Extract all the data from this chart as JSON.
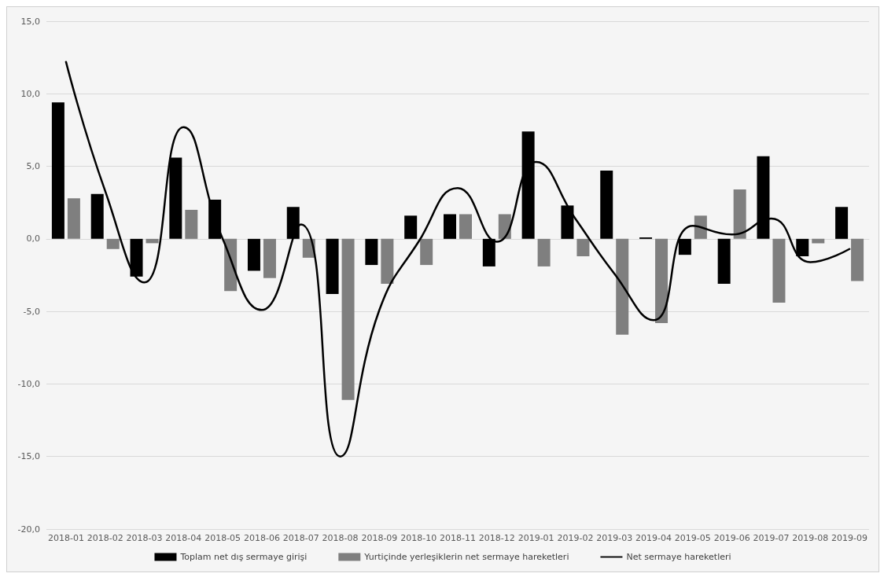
{
  "chart_data": {
    "type": "bar",
    "categories": [
      "2018-01",
      "2018-02",
      "2018-03",
      "2018-04",
      "2018-05",
      "2018-06",
      "2018-07",
      "2018-08",
      "2018-09",
      "2018-10",
      "2018-11",
      "2018-12",
      "2019-01",
      "2019-02",
      "2019-03",
      "2019-04",
      "2019-05",
      "2019-06",
      "2019-07",
      "2019-08",
      "2019-09"
    ],
    "series": [
      {
        "name": "Toplam net dış sermaye girişi",
        "color": "#000000",
        "values": [
          9.4,
          3.1,
          -2.6,
          5.6,
          2.7,
          -2.2,
          2.2,
          -3.8,
          -1.8,
          1.6,
          1.7,
          -1.9,
          7.4,
          2.3,
          4.7,
          0.1,
          -1.1,
          -3.1,
          5.7,
          -1.2,
          2.2
        ]
      },
      {
        "name": "Yurtiçinde yerleşiklerin net sermaye hareketleri",
        "color": "#7f7f7f",
        "values": [
          2.8,
          -0.7,
          -0.3,
          2.0,
          -3.6,
          -2.7,
          -1.3,
          -11.1,
          -3.1,
          -1.8,
          1.7,
          1.7,
          -1.9,
          -1.2,
          -6.6,
          -5.8,
          1.6,
          3.4,
          -4.4,
          -0.3,
          -2.9
        ]
      },
      {
        "name": "Net sermaye hareketleri",
        "type": "line",
        "color": "#000000",
        "values": [
          12.2,
          3.3,
          -3.0,
          7.7,
          0.0,
          -4.9,
          1.0,
          -15.0,
          -4.9,
          -0.2,
          3.5,
          -0.2,
          5.3,
          1.4,
          -2.4,
          -5.6,
          0.9,
          0.3,
          1.4,
          -1.6,
          -0.7
        ]
      }
    ],
    "ylim": [
      -20,
      15
    ],
    "yticks": [
      {
        "value": -20,
        "label": "-20,0"
      },
      {
        "value": -15,
        "label": "-15,0"
      },
      {
        "value": -10,
        "label": "-10,0"
      },
      {
        "value": -5,
        "label": "-5,0"
      },
      {
        "value": 0,
        "label": "0,0"
      },
      {
        "value": 5,
        "label": "5,0"
      },
      {
        "value": 10,
        "label": "10,0"
      },
      {
        "value": 15,
        "label": "15,0"
      }
    ],
    "grid": "y",
    "legend": "bottom",
    "marker": "none",
    "line_style": "solid"
  }
}
